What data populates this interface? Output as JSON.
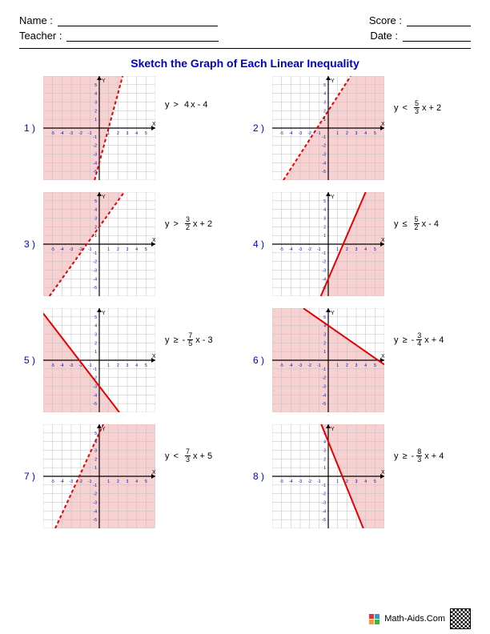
{
  "header": {
    "name_label": "Name :",
    "teacher_label": "Teacher :",
    "score_label": "Score :",
    "date_label": "Date :"
  },
  "title": "Sketch the Graph of Each Linear Inequality",
  "axis": {
    "min": -6,
    "max": 6,
    "step": 1,
    "grid_color": "#bfbfbf",
    "axis_color": "#000000",
    "tick_color": "#0000cc",
    "background": "#ffffff",
    "shade_color": "#f7d1d1",
    "line_color": "#e60000",
    "line_width": 2
  },
  "problems": [
    {
      "num": "1 )",
      "var": "y",
      "op": ">",
      "slope_num": 4,
      "slope_den": 1,
      "b": -4,
      "neg": false,
      "display_frac": false,
      "dashed": true,
      "shade": "left"
    },
    {
      "num": "2 )",
      "var": "y",
      "op": "<",
      "slope_num": 5,
      "slope_den": 3,
      "b": 2,
      "neg": false,
      "display_frac": true,
      "dashed": true,
      "shade": "right"
    },
    {
      "num": "3 )",
      "var": "y",
      "op": ">",
      "slope_num": 3,
      "slope_den": 2,
      "b": 2,
      "neg": false,
      "display_frac": true,
      "dashed": true,
      "shade": "left"
    },
    {
      "num": "4 )",
      "var": "y",
      "op": "≤",
      "slope_num": 5,
      "slope_den": 2,
      "b": -4,
      "neg": false,
      "display_frac": true,
      "dashed": false,
      "shade": "right"
    },
    {
      "num": "5 )",
      "var": "y",
      "op": "≥",
      "slope_num": 7,
      "slope_den": 5,
      "b": -3,
      "neg": true,
      "display_frac": true,
      "dashed": false,
      "shade": "right"
    },
    {
      "num": "6 )",
      "var": "y",
      "op": "≥",
      "slope_num": 3,
      "slope_den": 4,
      "b": 4,
      "neg": true,
      "display_frac": true,
      "dashed": false,
      "shade": "right"
    },
    {
      "num": "7 )",
      "var": "y",
      "op": "<",
      "slope_num": 7,
      "slope_den": 3,
      "b": 5,
      "neg": false,
      "display_frac": true,
      "dashed": true,
      "shade": "right"
    },
    {
      "num": "8 )",
      "var": "y",
      "op": "≥",
      "slope_num": 8,
      "slope_den": 3,
      "b": 4,
      "neg": true,
      "display_frac": true,
      "dashed": false,
      "shade": "left"
    }
  ],
  "footer": {
    "site": "Math-Aids.Com"
  }
}
